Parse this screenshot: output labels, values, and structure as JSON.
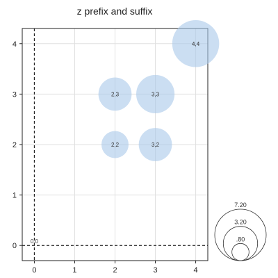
{
  "chart_data": {
    "type": "scatter",
    "title": "z prefix and suffix",
    "xlabel": "",
    "ylabel": "",
    "xlim": [
      -0.3,
      4.3
    ],
    "ylim": [
      -0.3,
      4.3
    ],
    "x_ticks": [
      0,
      1,
      2,
      3,
      4
    ],
    "y_ticks": [
      0,
      1,
      2,
      3,
      4
    ],
    "grid": true,
    "zero_lines": "dashed",
    "bubble_color": "#a8c8ea",
    "points": [
      {
        "x": 0,
        "y": 0,
        "z": 0,
        "label": "0,0"
      },
      {
        "x": 2,
        "y": 2,
        "z": 2,
        "label": "2,2"
      },
      {
        "x": 2,
        "y": 3,
        "z": 3,
        "label": "2,3"
      },
      {
        "x": 3,
        "y": 2,
        "z": 3,
        "label": "3,2"
      },
      {
        "x": 3,
        "y": 3,
        "z": 4,
        "label": "3,3"
      },
      {
        "x": 4,
        "y": 4,
        "z": 6,
        "label": "4,4"
      }
    ],
    "size_legend": {
      "placement": "bottom-right",
      "entries": [
        {
          "value": 7.2,
          "label": "7.20"
        },
        {
          "value": 3.2,
          "label": "3.20"
        },
        {
          "value": 0.8,
          "label": ".80"
        }
      ]
    }
  }
}
